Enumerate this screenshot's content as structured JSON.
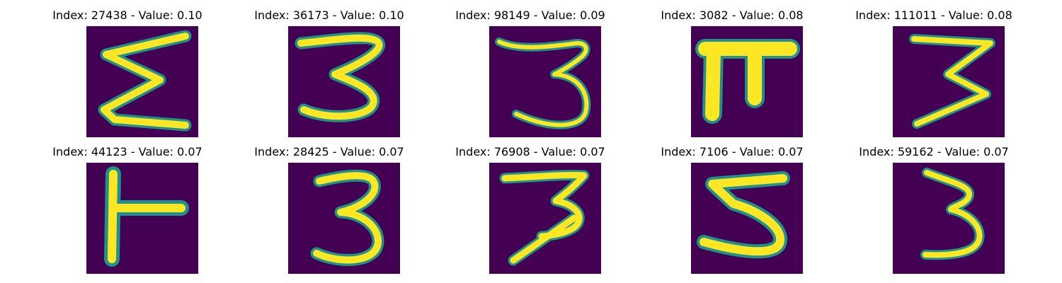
{
  "colors": {
    "background": "#440154",
    "stroke_outer": "#21918c",
    "stroke_inner": "#fde725"
  },
  "panels": [
    {
      "title": "Index: 27438 - Value: 0.10",
      "glyph": "sigma-like-3"
    },
    {
      "title": "Index: 36173 - Value: 0.10",
      "glyph": "digit-3"
    },
    {
      "title": "Index: 98149 - Value: 0.09",
      "glyph": "digit-3"
    },
    {
      "title": "Index: 3082 - Value: 0.08",
      "glyph": "pi-like-shape"
    },
    {
      "title": "Index: 111011 - Value: 0.08",
      "glyph": "digit-3"
    },
    {
      "title": "Index: 44123 - Value: 0.07",
      "glyph": "t-like-shape"
    },
    {
      "title": "Index: 28425 - Value: 0.07",
      "glyph": "digit-3"
    },
    {
      "title": "Index: 76908 - Value: 0.07",
      "glyph": "digit-3"
    },
    {
      "title": "Index: 7106 - Value: 0.07",
      "glyph": "digit-5"
    },
    {
      "title": "Index: 59162 - Value: 0.07",
      "glyph": "digit-3"
    }
  ]
}
